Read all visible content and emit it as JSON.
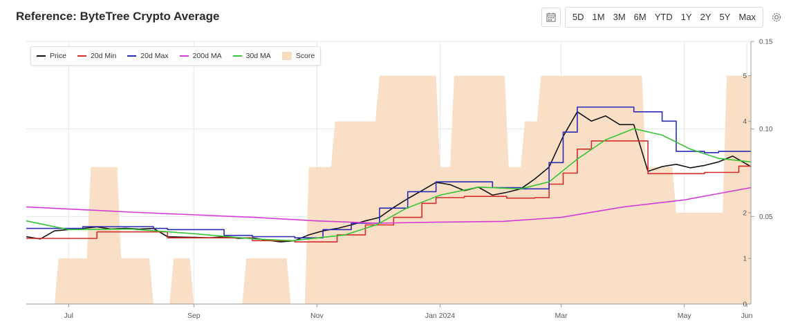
{
  "title": "Reference: ByteTree Crypto Average",
  "toolbar": {
    "ranges": [
      "5D",
      "1M",
      "3M",
      "6M",
      "YTD",
      "1Y",
      "2Y",
      "5Y",
      "Max"
    ],
    "calendar_icon": "calendar-icon",
    "settings_icon": "gear-icon"
  },
  "chart_data": {
    "type": "line",
    "x_type": "date",
    "x_range": [
      "2023-06-10",
      "2024-06-03"
    ],
    "x_ticks": [
      {
        "date": "2023-07-01",
        "label": "Jul"
      },
      {
        "date": "2023-09-01",
        "label": "Sep"
      },
      {
        "date": "2023-11-01",
        "label": "Nov"
      },
      {
        "date": "2024-01-01",
        "label": "Jan 2024"
      },
      {
        "date": "2024-03-01",
        "label": "Mar"
      },
      {
        "date": "2024-05-01",
        "label": "May"
      },
      {
        "date": "2024-06-01",
        "label": "Jun"
      }
    ],
    "y_axis": {
      "ticks": [
        0.05,
        0.1,
        0.15
      ],
      "tick_labels": [
        "0.05",
        "0.10",
        "0.15"
      ],
      "ylim": [
        0.0,
        0.15
      ]
    },
    "y2_axis": {
      "ticks": [
        0,
        1,
        2,
        4,
        5
      ],
      "tick_labels": [
        "0",
        "1",
        "2",
        "4",
        "5"
      ],
      "ylim": [
        0,
        5.75
      ]
    },
    "grid": true,
    "legend": "top-left",
    "series": [
      {
        "name": "Price",
        "color": "#111111",
        "axis": "left",
        "points": [
          [
            "2023-06-10",
            0.0385
          ],
          [
            "2023-06-17",
            0.0372
          ],
          [
            "2023-06-24",
            0.0418
          ],
          [
            "2023-07-01",
            0.0425
          ],
          [
            "2023-07-08",
            0.0432
          ],
          [
            "2023-07-15",
            0.0441
          ],
          [
            "2023-07-22",
            0.0428
          ],
          [
            "2023-07-29",
            0.0433
          ],
          [
            "2023-08-05",
            0.0428
          ],
          [
            "2023-08-12",
            0.0432
          ],
          [
            "2023-08-19",
            0.0385
          ],
          [
            "2023-08-26",
            0.0382
          ],
          [
            "2023-09-02",
            0.0381
          ],
          [
            "2023-09-09",
            0.0378
          ],
          [
            "2023-09-16",
            0.0385
          ],
          [
            "2023-09-23",
            0.0375
          ],
          [
            "2023-09-30",
            0.0378
          ],
          [
            "2023-10-07",
            0.0365
          ],
          [
            "2023-10-14",
            0.0355
          ],
          [
            "2023-10-21",
            0.0362
          ],
          [
            "2023-10-28",
            0.0395
          ],
          [
            "2023-11-04",
            0.0418
          ],
          [
            "2023-11-11",
            0.0432
          ],
          [
            "2023-11-18",
            0.0452
          ],
          [
            "2023-11-25",
            0.0475
          ],
          [
            "2023-12-02",
            0.0495
          ],
          [
            "2023-12-09",
            0.0552
          ],
          [
            "2023-12-16",
            0.0602
          ],
          [
            "2023-12-23",
            0.0648
          ],
          [
            "2023-12-30",
            0.0695
          ],
          [
            "2024-01-06",
            0.0682
          ],
          [
            "2024-01-13",
            0.0648
          ],
          [
            "2024-01-20",
            0.0668
          ],
          [
            "2024-01-27",
            0.0622
          ],
          [
            "2024-02-03",
            0.0638
          ],
          [
            "2024-02-10",
            0.0658
          ],
          [
            "2024-02-17",
            0.0715
          ],
          [
            "2024-02-24",
            0.0782
          ],
          [
            "2024-03-02",
            0.0958
          ],
          [
            "2024-03-09",
            0.1098
          ],
          [
            "2024-03-16",
            0.1045
          ],
          [
            "2024-03-23",
            0.1075
          ],
          [
            "2024-03-30",
            0.1025
          ],
          [
            "2024-04-06",
            0.1025
          ],
          [
            "2024-04-13",
            0.0758
          ],
          [
            "2024-04-20",
            0.0785
          ],
          [
            "2024-04-27",
            0.0798
          ],
          [
            "2024-05-04",
            0.0778
          ],
          [
            "2024-05-11",
            0.0792
          ],
          [
            "2024-05-18",
            0.0812
          ],
          [
            "2024-05-25",
            0.0845
          ],
          [
            "2024-06-03",
            0.0785
          ]
        ]
      },
      {
        "name": "20d Min",
        "color": "#d42a2a",
        "axis": "left",
        "points": [
          [
            "2023-06-10",
            0.0375
          ],
          [
            "2023-07-01",
            0.0375
          ],
          [
            "2023-07-15",
            0.0412
          ],
          [
            "2023-08-12",
            0.0412
          ],
          [
            "2023-08-19",
            0.0378
          ],
          [
            "2023-09-30",
            0.0362
          ],
          [
            "2023-10-21",
            0.0355
          ],
          [
            "2023-11-11",
            0.0395
          ],
          [
            "2023-11-25",
            0.0452
          ],
          [
            "2023-12-09",
            0.0495
          ],
          [
            "2023-12-23",
            0.0575
          ],
          [
            "2023-12-30",
            0.0608
          ],
          [
            "2024-01-13",
            0.0615
          ],
          [
            "2024-02-03",
            0.0605
          ],
          [
            "2024-02-17",
            0.0608
          ],
          [
            "2024-02-24",
            0.0685
          ],
          [
            "2024-03-02",
            0.0748
          ],
          [
            "2024-03-09",
            0.0885
          ],
          [
            "2024-03-16",
            0.0932
          ],
          [
            "2024-04-06",
            0.0932
          ],
          [
            "2024-04-13",
            0.0745
          ],
          [
            "2024-05-11",
            0.0752
          ],
          [
            "2024-05-25",
            0.0752
          ],
          [
            "2024-05-28",
            0.0788
          ],
          [
            "2024-06-03",
            0.0788
          ]
        ]
      },
      {
        "name": "20d Max",
        "color": "#2a2ab8",
        "axis": "left",
        "points": [
          [
            "2023-06-10",
            0.0432
          ],
          [
            "2023-07-08",
            0.0442
          ],
          [
            "2023-08-12",
            0.0432
          ],
          [
            "2023-08-19",
            0.0425
          ],
          [
            "2023-09-16",
            0.0392
          ],
          [
            "2023-09-30",
            0.0385
          ],
          [
            "2023-10-21",
            0.0378
          ],
          [
            "2023-11-04",
            0.0425
          ],
          [
            "2023-11-18",
            0.0462
          ],
          [
            "2023-12-02",
            0.0548
          ],
          [
            "2023-12-16",
            0.0642
          ],
          [
            "2023-12-30",
            0.0698
          ],
          [
            "2024-01-13",
            0.0698
          ],
          [
            "2024-01-27",
            0.0665
          ],
          [
            "2024-02-10",
            0.0658
          ],
          [
            "2024-02-24",
            0.0808
          ],
          [
            "2024-03-02",
            0.0982
          ],
          [
            "2024-03-09",
            0.1125
          ],
          [
            "2024-03-16",
            0.1125
          ],
          [
            "2024-04-06",
            0.1098
          ],
          [
            "2024-04-20",
            0.1045
          ],
          [
            "2024-04-27",
            0.0872
          ],
          [
            "2024-05-11",
            0.0865
          ],
          [
            "2024-05-18",
            0.0872
          ],
          [
            "2024-06-03",
            0.0872
          ]
        ]
      },
      {
        "name": "200d MA",
        "color": "#d63ad6",
        "axis": "left",
        "points": [
          [
            "2023-06-10",
            0.0555
          ],
          [
            "2023-08-01",
            0.0525
          ],
          [
            "2023-10-01",
            0.0495
          ],
          [
            "2023-11-01",
            0.0475
          ],
          [
            "2023-12-01",
            0.0462
          ],
          [
            "2024-01-01",
            0.0468
          ],
          [
            "2024-02-01",
            0.0472
          ],
          [
            "2024-03-01",
            0.0495
          ],
          [
            "2024-04-01",
            0.0555
          ],
          [
            "2024-05-01",
            0.0595
          ],
          [
            "2024-06-03",
            0.0665
          ]
        ]
      },
      {
        "name": "30d MA",
        "color": "#34c434",
        "axis": "left",
        "points": [
          [
            "2023-06-10",
            0.0475
          ],
          [
            "2023-07-01",
            0.0425
          ],
          [
            "2023-08-01",
            0.0428
          ],
          [
            "2023-09-01",
            0.0402
          ],
          [
            "2023-10-01",
            0.0372
          ],
          [
            "2023-10-20",
            0.0362
          ],
          [
            "2023-11-15",
            0.0395
          ],
          [
            "2023-12-01",
            0.0455
          ],
          [
            "2023-12-15",
            0.0545
          ],
          [
            "2024-01-01",
            0.0622
          ],
          [
            "2024-01-20",
            0.0668
          ],
          [
            "2024-02-10",
            0.0658
          ],
          [
            "2024-02-24",
            0.0698
          ],
          [
            "2024-03-09",
            0.0828
          ],
          [
            "2024-03-23",
            0.0938
          ],
          [
            "2024-04-06",
            0.1002
          ],
          [
            "2024-04-20",
            0.0965
          ],
          [
            "2024-05-04",
            0.0885
          ],
          [
            "2024-05-18",
            0.0832
          ],
          [
            "2024-06-03",
            0.0812
          ]
        ]
      },
      {
        "name": "Score",
        "color": "#f8dcc0",
        "axis": "right",
        "type": "area",
        "points": [
          [
            "2023-06-10",
            0
          ],
          [
            "2023-06-24",
            0
          ],
          [
            "2023-06-26",
            1
          ],
          [
            "2023-07-10",
            1
          ],
          [
            "2023-07-12",
            3
          ],
          [
            "2023-07-25",
            3
          ],
          [
            "2023-07-27",
            1
          ],
          [
            "2023-08-10",
            1
          ],
          [
            "2023-08-12",
            0
          ],
          [
            "2023-08-20",
            0
          ],
          [
            "2023-08-22",
            1
          ],
          [
            "2023-08-30",
            1
          ],
          [
            "2023-09-01",
            0
          ],
          [
            "2023-09-25",
            0
          ],
          [
            "2023-09-27",
            1
          ],
          [
            "2023-10-17",
            1
          ],
          [
            "2023-10-19",
            0
          ],
          [
            "2023-10-26",
            0
          ],
          [
            "2023-10-28",
            3
          ],
          [
            "2023-11-08",
            3
          ],
          [
            "2023-11-10",
            4
          ],
          [
            "2023-11-30",
            4
          ],
          [
            "2023-12-02",
            5
          ],
          [
            "2023-12-30",
            5
          ],
          [
            "2024-01-01",
            3
          ],
          [
            "2024-01-06",
            3
          ],
          [
            "2024-01-08",
            5
          ],
          [
            "2024-02-02",
            5
          ],
          [
            "2024-02-04",
            3
          ],
          [
            "2024-02-10",
            3
          ],
          [
            "2024-02-12",
            4
          ],
          [
            "2024-02-18",
            4
          ],
          [
            "2024-02-20",
            5
          ],
          [
            "2024-04-10",
            5
          ],
          [
            "2024-04-12",
            3
          ],
          [
            "2024-04-25",
            3
          ],
          [
            "2024-04-27",
            2
          ],
          [
            "2024-05-20",
            2
          ],
          [
            "2024-05-22",
            5
          ],
          [
            "2024-06-03",
            5
          ]
        ]
      }
    ],
    "legend_entries": [
      "Price",
      "20d Min",
      "20d Max",
      "200d MA",
      "30d MA",
      "Score"
    ]
  }
}
